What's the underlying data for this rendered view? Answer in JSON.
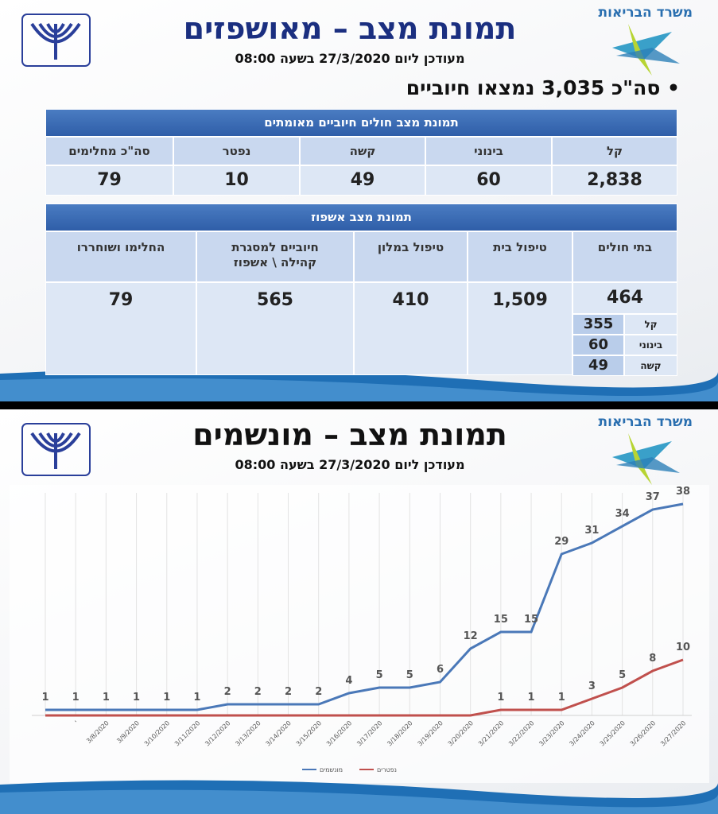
{
  "slides": [
    {
      "ministry": "משרד הבריאות",
      "title": "תמונת מצב – מאושפזים",
      "subtitle": "מעודכן ליום 27/3/2020 בשעה 08:00",
      "bullet": "סה\"כ 3,035 נמצאו חיוביים",
      "table1": {
        "title": "תמונת מצב חולים חיוביים מאומתים",
        "headers": [
          "קל",
          "בינוני",
          "קשה",
          "נפטר",
          "סה\"כ מחלימים"
        ],
        "values": [
          "2,838",
          "60",
          "49",
          "10",
          "79"
        ]
      },
      "table2": {
        "title": "תמונת מצב אשפוז",
        "headers": [
          "בתי חולים",
          "טיפול בית",
          "טיפול במלון",
          "חיוביים למסגרת\nקהילה \\ אשפוז",
          "החלימו ושוחררו"
        ],
        "values": [
          "464",
          "1,509",
          "410",
          "565",
          "79"
        ],
        "hospital_breakdown": [
          [
            "קל",
            "355"
          ],
          [
            "בינוני",
            "60"
          ],
          [
            "קשה",
            "49"
          ]
        ]
      }
    },
    {
      "ministry": "משרד הבריאות",
      "title": "תמונת מצב – מונשמים",
      "subtitle": "מעודכן ליום 27/3/2020 בשעה 08:00"
    }
  ],
  "chart_data": {
    "type": "line",
    "categories": [
      null,
      "'",
      "3/8/2020",
      "3/9/2020",
      "3/10/2020",
      "3/11/2020",
      "3/12/2020",
      "3/13/2020",
      "3/14/2020",
      "3/15/2020",
      "3/16/2020",
      "3/17/2020",
      "3/18/2020",
      "3/19/2020",
      "3/20/2020",
      "3/21/2020",
      "3/22/2020",
      "3/23/2020",
      "3/24/2020",
      "3/25/2020",
      "3/26/2020",
      "3/27/2020"
    ],
    "series": [
      {
        "name": "מונשמים",
        "color": "#4a78b8",
        "values": [
          1,
          1,
          1,
          1,
          1,
          1,
          2,
          2,
          2,
          2,
          4,
          5,
          5,
          6,
          12,
          15,
          15,
          29,
          31,
          34,
          37,
          38
        ]
      },
      {
        "name": "נפטרים",
        "color": "#c0504d",
        "values": [
          0,
          0,
          0,
          0,
          0,
          0,
          0,
          0,
          0,
          0,
          0,
          0,
          0,
          0,
          0,
          1,
          1,
          1,
          3,
          5,
          8,
          10
        ],
        "value_labels": [
          null,
          null,
          null,
          null,
          null,
          null,
          null,
          null,
          null,
          null,
          null,
          null,
          null,
          null,
          null,
          "1",
          "1",
          "1",
          "3",
          "5",
          "8",
          "10"
        ]
      }
    ],
    "ylim": [
      0,
      40
    ],
    "legend": "bottom"
  }
}
